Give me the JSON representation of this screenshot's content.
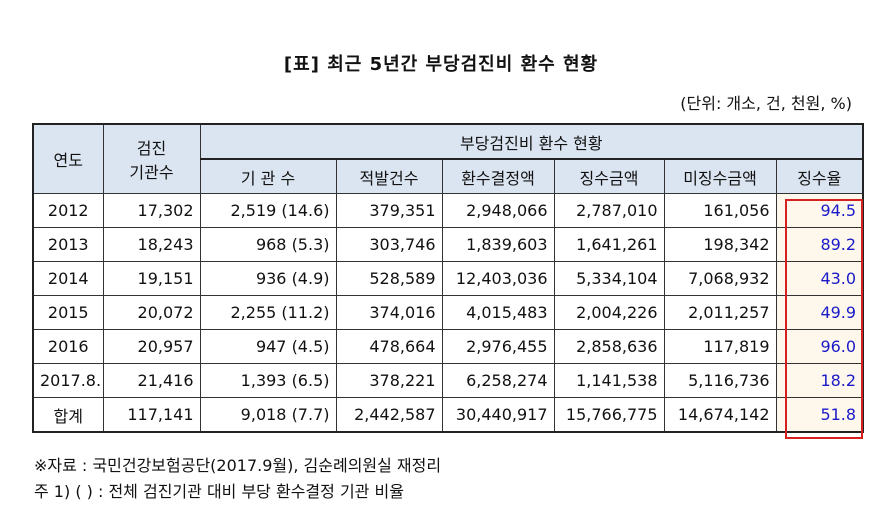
{
  "title": "[표]   최근 5년간 부당검진비 환수 현황",
  "unit": "(단위: 개소, 건, 천원, %)",
  "headers": {
    "year": "연도",
    "inst_line1": "검진",
    "inst_line2": "기관수",
    "group": "부당검진비 환수 현황",
    "sub": [
      "기 관 수",
      "적발건수",
      "환수결정액",
      "징수금액",
      "미징수금액",
      "징수율"
    ]
  },
  "rows": [
    {
      "year": "2012",
      "inst": "17,302",
      "count": "2,519 (14.6)",
      "detected": "379,351",
      "decided": "2,948,066",
      "collected": "2,787,010",
      "uncollected": "161,056",
      "rate": "94.5"
    },
    {
      "year": "2013",
      "inst": "18,243",
      "count": "968 (5.3)",
      "detected": "303,746",
      "decided": "1,839,603",
      "collected": "1,641,261",
      "uncollected": "198,342",
      "rate": "89.2"
    },
    {
      "year": "2014",
      "inst": "19,151",
      "count": "936 (4.9)",
      "detected": "528,589",
      "decided": "12,403,036",
      "collected": "5,334,104",
      "uncollected": "7,068,932",
      "rate": "43.0"
    },
    {
      "year": "2015",
      "inst": "20,072",
      "count": "2,255 (11.2)",
      "detected": "374,016",
      "decided": "4,015,483",
      "collected": "2,004,226",
      "uncollected": "2,011,257",
      "rate": "49.9"
    },
    {
      "year": "2016",
      "inst": "20,957",
      "count": "947 (4.5)",
      "detected": "478,664",
      "decided": "2,976,455",
      "collected": "2,858,636",
      "uncollected": "117,819",
      "rate": "96.0"
    },
    {
      "year": "2017.8.",
      "inst": "21,416",
      "count": "1,393 (6.5)",
      "detected": "378,221",
      "decided": "6,258,274",
      "collected": "1,141,538",
      "uncollected": "5,116,736",
      "rate": "18.2"
    },
    {
      "year": "합계",
      "inst": "117,141",
      "count": "9,018 (7.7)",
      "detected": "2,442,587",
      "decided": "30,440,917",
      "collected": "15,766,775",
      "uncollected": "14,674,142",
      "rate": "51.8"
    }
  ],
  "notes": [
    "※자료 : 국민건강보험공단(2017.9월), 김순례의원실 재정리",
    "주 1) (    ) : 전체 검진기관 대비 부당 환수결정 기관 비율"
  ],
  "colors": {
    "header_bg": "#dbe5f1",
    "rate_text": "#1a1ac8",
    "highlight_border": "#d62020"
  }
}
